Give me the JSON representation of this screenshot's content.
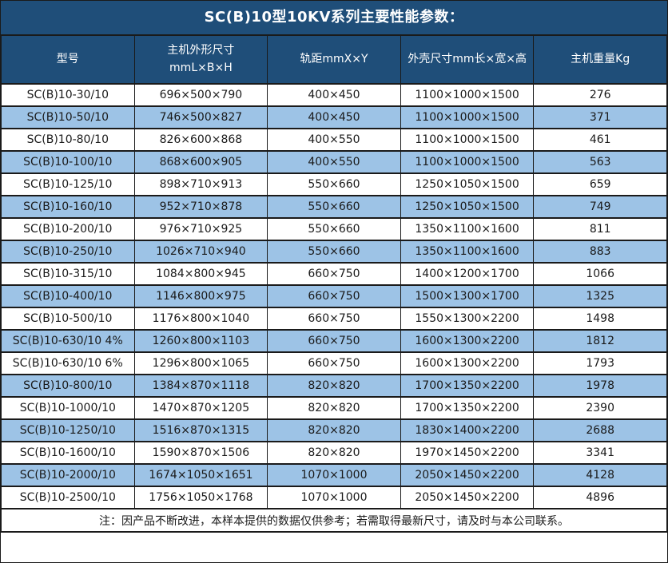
{
  "title": "SC(B)10型10KV系列主要性能参数：",
  "table": {
    "columns": [
      {
        "label": "型号",
        "sub": ""
      },
      {
        "label": "主机外形尺寸",
        "sub": "mmL×B×H"
      },
      {
        "label": "轨距mmX×Y",
        "sub": ""
      },
      {
        "label": "外壳尺寸mm长×宽×高",
        "sub": ""
      },
      {
        "label": "主机重量Kg",
        "sub": ""
      }
    ],
    "rows": [
      [
        "SC(B)10-30/10",
        "696×500×790",
        "400×450",
        "1100×1000×1500",
        "276"
      ],
      [
        "SC(B)10-50/10",
        "746×500×827",
        "400×450",
        "1100×1000×1500",
        "371"
      ],
      [
        "SC(B)10-80/10",
        "826×600×868",
        "400×550",
        "1100×1000×1500",
        "461"
      ],
      [
        "SC(B)10-100/10",
        "868×600×905",
        "400×550",
        "1100×1000×1500",
        "563"
      ],
      [
        "SC(B)10-125/10",
        "898×710×913",
        "550×660",
        "1250×1050×1500",
        "659"
      ],
      [
        "SC(B)10-160/10",
        "952×710×878",
        "550×660",
        "1250×1050×1500",
        "749"
      ],
      [
        "SC(B)10-200/10",
        "976×710×925",
        "550×660",
        "1350×1100×1600",
        "811"
      ],
      [
        "SC(B)10-250/10",
        "1026×710×940",
        "550×660",
        "1350×1100×1600",
        "883"
      ],
      [
        "SC(B)10-315/10",
        "1084×800×945",
        "660×750",
        "1400×1200×1700",
        "1066"
      ],
      [
        "SC(B)10-400/10",
        "1146×800×975",
        "660×750",
        "1500×1300×1700",
        "1325"
      ],
      [
        "SC(B)10-500/10",
        "1176×800×1040",
        "660×750",
        "1550×1300×2200",
        "1498"
      ],
      [
        "SC(B)10-630/10 4%",
        "1260×800×1103",
        "660×750",
        "1600×1300×2200",
        "1812"
      ],
      [
        "SC(B)10-630/10 6%",
        "1296×800×1065",
        "660×750",
        "1600×1300×2200",
        "1793"
      ],
      [
        "SC(B)10-800/10",
        "1384×870×1118",
        "820×820",
        "1700×1350×2200",
        "1978"
      ],
      [
        "SC(B)10-1000/10",
        "1470×870×1205",
        "820×820",
        "1700×1350×2200",
        "2390"
      ],
      [
        "SC(B)10-1250/10",
        "1516×870×1315",
        "820×820",
        "1830×1400×2200",
        "2688"
      ],
      [
        "SC(B)10-1600/10",
        "1590×870×1506",
        "820×820",
        "1970×1450×2200",
        "3341"
      ],
      [
        "SC(B)10-2000/10",
        "1674×1050×1651",
        "1070×1000",
        "2050×1450×2200",
        "4128"
      ],
      [
        "SC(B)10-2500/10",
        "1756×1050×1768",
        "1070×1000",
        "2050×1450×2200",
        "4896"
      ]
    ]
  },
  "note": "注：因产品不断改进，本样本提供的数据仅供参考；若需取得最新尺寸，请及时与本公司联系。",
  "colors": {
    "title_bg": "#1F4E79",
    "alt_row_bg": "#9DC3E6",
    "border_color": "#1A1A1A",
    "header_text": "#FFFFFF",
    "body_text": "#1A1A1A",
    "row_bg": "#FFFFFF"
  }
}
